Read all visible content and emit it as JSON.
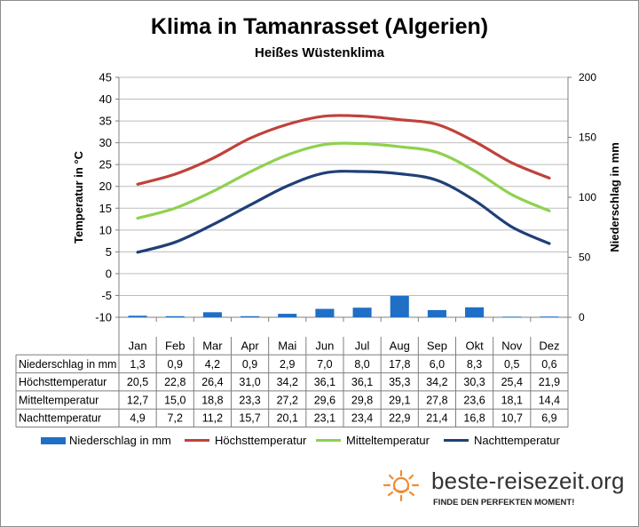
{
  "chart_data": {
    "type": "bar+line",
    "title": "Klima in Tamanrasset (Algerien)",
    "subtitle": "Heißes Wüstenklima",
    "categories": [
      "Jan",
      "Feb",
      "Mar",
      "Apr",
      "Mai",
      "Jun",
      "Jul",
      "Aug",
      "Sep",
      "Okt",
      "Nov",
      "Dez"
    ],
    "ylabel_left": "Temperatur in °C",
    "ylabel_right": "Niederschlag in mm",
    "ylim_left": [
      -10,
      45
    ],
    "yticks_left": [
      "45",
      "40",
      "35",
      "30",
      "25",
      "20",
      "15",
      "10",
      "5",
      "0",
      "-5",
      "-10"
    ],
    "ylim_right": [
      0,
      200
    ],
    "yticks_right": [
      "200",
      "150",
      "100",
      "50",
      "0"
    ],
    "grid": true,
    "legend_position": "bottom",
    "series": [
      {
        "name": "Niederschlag in mm",
        "kind": "bar",
        "axis": "right",
        "color": "#1f6fc6",
        "values": [
          1.3,
          0.9,
          4.2,
          0.9,
          2.9,
          7.0,
          8.0,
          17.8,
          6.0,
          8.3,
          0.5,
          0.6
        ],
        "labels": [
          "1,3",
          "0,9",
          "4,2",
          "0,9",
          "2,9",
          "7,0",
          "8,0",
          "17,8",
          "6,0",
          "8,3",
          "0,5",
          "0,6"
        ]
      },
      {
        "name": "Höchsttemperatur",
        "kind": "line",
        "axis": "left",
        "color": "#c0413b",
        "values": [
          20.5,
          22.8,
          26.4,
          31.0,
          34.2,
          36.1,
          36.1,
          35.3,
          34.2,
          30.3,
          25.4,
          21.9
        ],
        "labels": [
          "20,5",
          "22,8",
          "26,4",
          "31,0",
          "34,2",
          "36,1",
          "36,1",
          "35,3",
          "34,2",
          "30,3",
          "25,4",
          "21,9"
        ]
      },
      {
        "name": "Mitteltemperatur",
        "kind": "line",
        "axis": "left",
        "color": "#8fd14f",
        "values": [
          12.7,
          15.0,
          18.8,
          23.3,
          27.2,
          29.6,
          29.8,
          29.1,
          27.8,
          23.6,
          18.1,
          14.4
        ],
        "labels": [
          "12,7",
          "15,0",
          "18,8",
          "23,3",
          "27,2",
          "29,6",
          "29,8",
          "29,1",
          "27,8",
          "23,6",
          "18,1",
          "14,4"
        ]
      },
      {
        "name": "Nachttemperatur",
        "kind": "line",
        "axis": "left",
        "color": "#1f3f77",
        "values": [
          4.9,
          7.2,
          11.2,
          15.7,
          20.1,
          23.1,
          23.4,
          22.9,
          21.4,
          16.8,
          10.7,
          6.9
        ],
        "labels": [
          "4,9",
          "7,2",
          "11,2",
          "15,7",
          "20,1",
          "23,1",
          "23,4",
          "22,9",
          "21,4",
          "16,8",
          "10,7",
          "6,9"
        ]
      }
    ]
  },
  "table": {
    "row_labels": [
      "Niederschlag in mm",
      "Höchsttemperatur",
      "Mitteltemperatur",
      "Nachttemperatur"
    ]
  },
  "logo": {
    "text": "beste-reisezeit.org",
    "slogan": "FINDE DEN PERFEKTEN MOMENT!",
    "icon": "sun-icon",
    "color": "#f28b30"
  }
}
